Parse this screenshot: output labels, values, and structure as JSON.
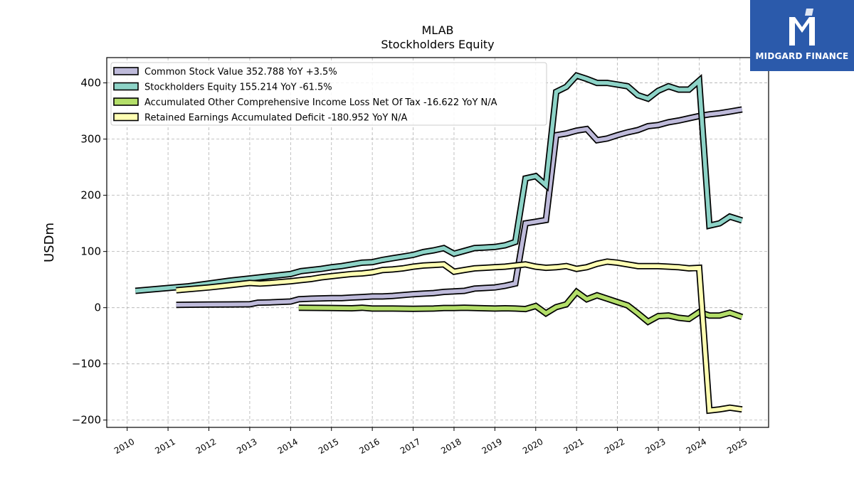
{
  "chart_data": {
    "type": "line",
    "title": "MLAB",
    "subtitle": "Stockholders  Equity",
    "xlabel": "",
    "ylabel": "USDm",
    "xlim": [
      2009.5,
      2025.7
    ],
    "ylim": [
      -213,
      445
    ],
    "yticks": [
      -200,
      -100,
      0,
      100,
      200,
      300,
      400
    ],
    "ytick_labels": [
      "−200",
      "−100",
      "0",
      "100",
      "200",
      "300",
      "400"
    ],
    "xticks": [
      "2010",
      "2011",
      "2012",
      "2013",
      "2014",
      "2015",
      "2016",
      "2017",
      "2018",
      "2019",
      "2020",
      "2021",
      "2022",
      "2023",
      "2024",
      "2025"
    ],
    "grid": true,
    "legend_position": "top-left",
    "series": [
      {
        "name": "Common Stock Value  352.788 YoY +3.5%",
        "color": "#bebada",
        "points": [
          [
            2011.2,
            5
          ],
          [
            2012.0,
            5.5
          ],
          [
            2012.5,
            5.8
          ],
          [
            2013.0,
            6
          ],
          [
            2013.2,
            9
          ],
          [
            2013.5,
            9.5
          ],
          [
            2014.0,
            11
          ],
          [
            2014.2,
            15
          ],
          [
            2014.5,
            16
          ],
          [
            2015.0,
            17
          ],
          [
            2015.25,
            17
          ],
          [
            2015.5,
            18
          ],
          [
            2015.75,
            19
          ],
          [
            2016.0,
            20
          ],
          [
            2016.25,
            20
          ],
          [
            2016.5,
            21
          ],
          [
            2017.0,
            24
          ],
          [
            2017.25,
            25
          ],
          [
            2017.5,
            26
          ],
          [
            2017.75,
            28
          ],
          [
            2018.0,
            29
          ],
          [
            2018.25,
            30
          ],
          [
            2018.5,
            34
          ],
          [
            2018.75,
            35
          ],
          [
            2019.0,
            36
          ],
          [
            2019.25,
            39
          ],
          [
            2019.5,
            43
          ],
          [
            2019.75,
            150
          ],
          [
            2020.0,
            153
          ],
          [
            2020.25,
            156
          ],
          [
            2020.5,
            307
          ],
          [
            2020.75,
            310
          ],
          [
            2021.0,
            315
          ],
          [
            2021.25,
            318
          ],
          [
            2021.5,
            298
          ],
          [
            2021.75,
            301
          ],
          [
            2022.0,
            307
          ],
          [
            2022.25,
            312
          ],
          [
            2022.5,
            316
          ],
          [
            2022.75,
            323
          ],
          [
            2023.0,
            325
          ],
          [
            2023.25,
            330
          ],
          [
            2023.5,
            333
          ],
          [
            2023.75,
            337
          ],
          [
            2024.0,
            341
          ],
          [
            2024.25,
            344
          ],
          [
            2024.5,
            346
          ],
          [
            2024.75,
            349
          ],
          [
            2025.05,
            352.788
          ]
        ]
      },
      {
        "name": "Stockholders Equity  155.214 YoY -61.5%",
        "color": "#8dd3c7",
        "points": [
          [
            2010.2,
            30
          ],
          [
            2011.0,
            35
          ],
          [
            2011.5,
            38
          ],
          [
            2012.0,
            43
          ],
          [
            2012.5,
            48
          ],
          [
            2013.0,
            52
          ],
          [
            2013.25,
            54
          ],
          [
            2013.5,
            56
          ],
          [
            2014.0,
            60
          ],
          [
            2014.25,
            65
          ],
          [
            2014.5,
            67
          ],
          [
            2014.75,
            69
          ],
          [
            2015.0,
            72
          ],
          [
            2015.25,
            74
          ],
          [
            2015.5,
            77
          ],
          [
            2015.75,
            80
          ],
          [
            2016.0,
            81
          ],
          [
            2016.25,
            85
          ],
          [
            2016.5,
            88
          ],
          [
            2016.75,
            91
          ],
          [
            2017.0,
            94
          ],
          [
            2017.25,
            99
          ],
          [
            2017.5,
            102
          ],
          [
            2017.75,
            106
          ],
          [
            2018.0,
            96
          ],
          [
            2018.25,
            101
          ],
          [
            2018.5,
            106
          ],
          [
            2018.75,
            107
          ],
          [
            2019.0,
            108
          ],
          [
            2019.25,
            111
          ],
          [
            2019.5,
            117
          ],
          [
            2019.75,
            230
          ],
          [
            2020.0,
            234
          ],
          [
            2020.25,
            218
          ],
          [
            2020.5,
            384
          ],
          [
            2020.75,
            393
          ],
          [
            2021.0,
            413
          ],
          [
            2021.25,
            407
          ],
          [
            2021.5,
            400
          ],
          [
            2021.75,
            400
          ],
          [
            2022.0,
            397
          ],
          [
            2022.25,
            394
          ],
          [
            2022.5,
            378
          ],
          [
            2022.75,
            372
          ],
          [
            2023.0,
            386
          ],
          [
            2023.25,
            394
          ],
          [
            2023.5,
            388
          ],
          [
            2023.75,
            388
          ],
          [
            2024.0,
            404
          ],
          [
            2024.25,
            146
          ],
          [
            2024.5,
            150
          ],
          [
            2024.75,
            162
          ],
          [
            2025.05,
            155.214
          ]
        ]
      },
      {
        "name": "Accumulated Other Comprehensive Income Loss Net Of Tax  -16.622 YoY N/A",
        "color": "#b3de69",
        "points": [
          [
            2014.2,
            0
          ],
          [
            2015.0,
            -0.5
          ],
          [
            2015.5,
            -1
          ],
          [
            2015.75,
            0
          ],
          [
            2016.0,
            -1.5
          ],
          [
            2016.5,
            -1.5
          ],
          [
            2017.0,
            -2
          ],
          [
            2017.5,
            -1.5
          ],
          [
            2017.75,
            -0.5
          ],
          [
            2018.0,
            -0.5
          ],
          [
            2018.25,
            0
          ],
          [
            2018.5,
            -0.5
          ],
          [
            2018.75,
            -1
          ],
          [
            2019.0,
            -1.5
          ],
          [
            2019.25,
            -1
          ],
          [
            2019.5,
            -1.5
          ],
          [
            2019.75,
            -2.5
          ],
          [
            2020.0,
            3
          ],
          [
            2020.25,
            -10
          ],
          [
            2020.5,
            1
          ],
          [
            2020.75,
            6
          ],
          [
            2021.0,
            28
          ],
          [
            2021.25,
            15
          ],
          [
            2021.5,
            22
          ],
          [
            2021.75,
            16
          ],
          [
            2022.0,
            10
          ],
          [
            2022.25,
            4
          ],
          [
            2022.5,
            -10
          ],
          [
            2022.75,
            -25
          ],
          [
            2023.0,
            -15
          ],
          [
            2023.25,
            -14
          ],
          [
            2023.5,
            -18
          ],
          [
            2023.75,
            -20
          ],
          [
            2024.0,
            -8
          ],
          [
            2024.25,
            -14
          ],
          [
            2024.5,
            -14
          ],
          [
            2024.75,
            -9
          ],
          [
            2025.05,
            -16.622
          ]
        ]
      },
      {
        "name": "Retained Earnings Accumulated Deficit  -180.952 YoY N/A",
        "color": "#ffffb3",
        "points": [
          [
            2011.2,
            31
          ],
          [
            2012.0,
            36
          ],
          [
            2012.5,
            40
          ],
          [
            2013.0,
            44
          ],
          [
            2013.25,
            43
          ],
          [
            2013.5,
            44
          ],
          [
            2014.0,
            47
          ],
          [
            2014.25,
            49
          ],
          [
            2014.5,
            51
          ],
          [
            2014.75,
            54
          ],
          [
            2015.0,
            56
          ],
          [
            2015.25,
            58
          ],
          [
            2015.5,
            60
          ],
          [
            2015.75,
            61
          ],
          [
            2016.0,
            63
          ],
          [
            2016.25,
            67
          ],
          [
            2016.5,
            68
          ],
          [
            2016.75,
            70
          ],
          [
            2017.0,
            73
          ],
          [
            2017.25,
            75
          ],
          [
            2017.5,
            76
          ],
          [
            2017.75,
            77
          ],
          [
            2018.0,
            64
          ],
          [
            2018.25,
            67
          ],
          [
            2018.5,
            70
          ],
          [
            2018.75,
            71
          ],
          [
            2019.0,
            72
          ],
          [
            2019.25,
            73
          ],
          [
            2019.5,
            75
          ],
          [
            2019.75,
            77
          ],
          [
            2020.0,
            73
          ],
          [
            2020.25,
            71
          ],
          [
            2020.5,
            72
          ],
          [
            2020.75,
            74
          ],
          [
            2021.0,
            69
          ],
          [
            2021.25,
            72
          ],
          [
            2021.5,
            78
          ],
          [
            2021.75,
            82
          ],
          [
            2022.0,
            80
          ],
          [
            2022.25,
            77
          ],
          [
            2022.5,
            74
          ],
          [
            2022.75,
            74
          ],
          [
            2023.0,
            74
          ],
          [
            2023.25,
            73
          ],
          [
            2023.5,
            72
          ],
          [
            2023.75,
            70
          ],
          [
            2024.0,
            71
          ],
          [
            2024.25,
            -183
          ],
          [
            2024.5,
            -181
          ],
          [
            2024.75,
            -178
          ],
          [
            2025.05,
            -180.952
          ]
        ]
      }
    ]
  },
  "logo": {
    "text": "MIDGARD FINANCE",
    "icon": "midgard-logo-icon",
    "background": "#2b5aab"
  }
}
